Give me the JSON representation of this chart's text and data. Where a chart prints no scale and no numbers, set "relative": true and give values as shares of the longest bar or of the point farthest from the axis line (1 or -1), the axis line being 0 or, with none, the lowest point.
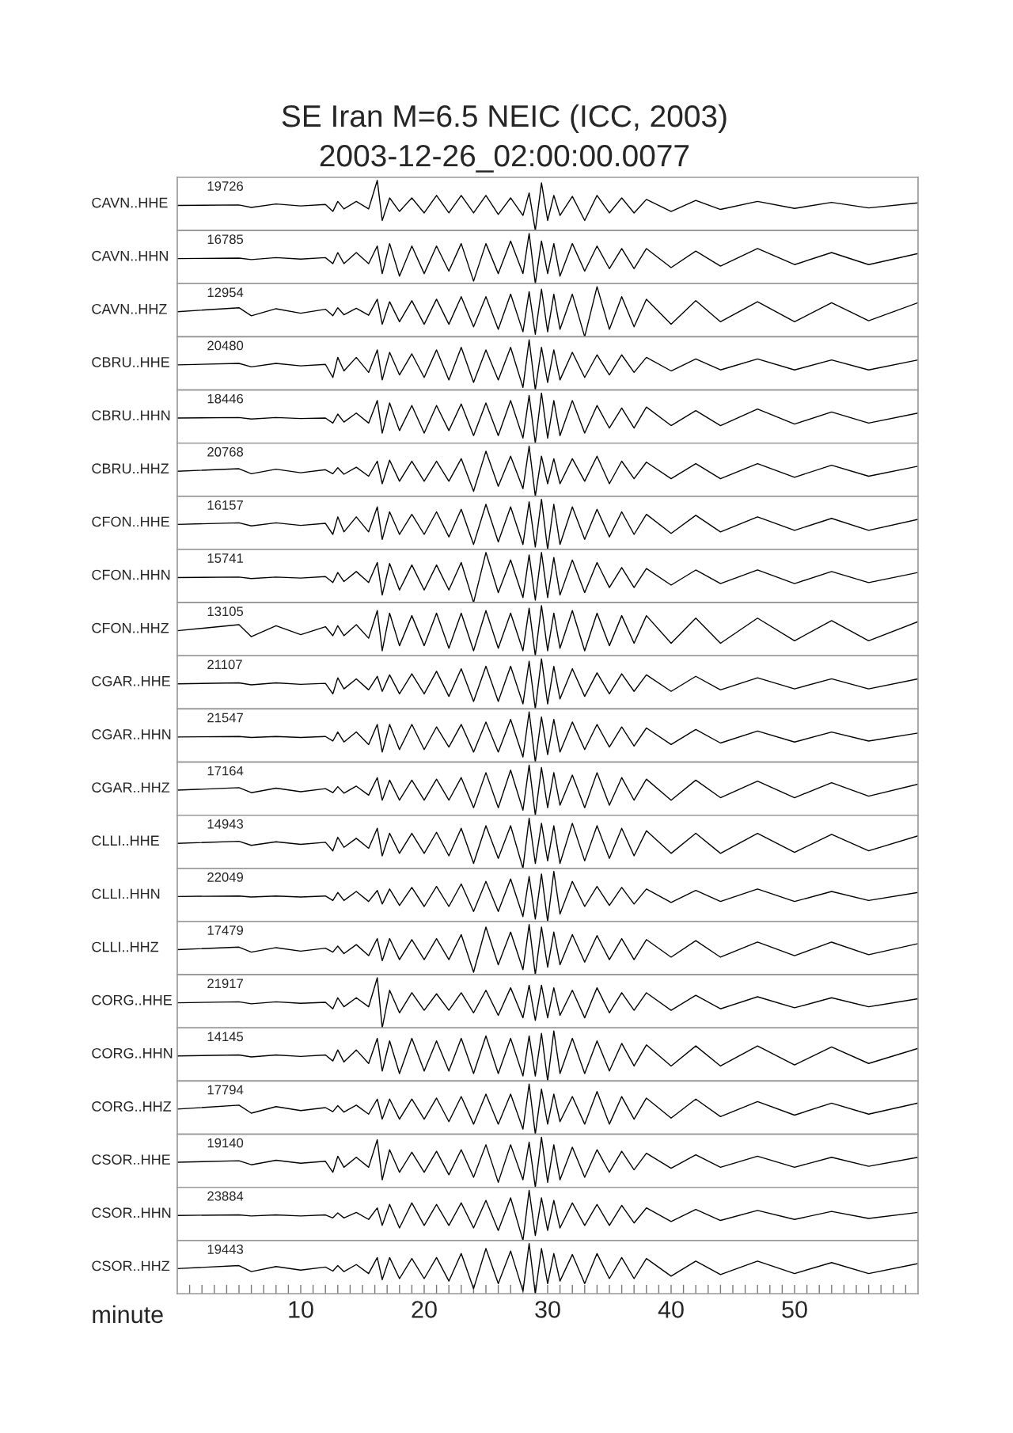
{
  "chart_data": [
    {
      "type": "line",
      "title": "SE Iran M=6.5 NEIC (ICC, 2003)",
      "subtitle": "2003-12-26_02:00:00.0077",
      "relative": true,
      "ylabel": "CAVN..HHE",
      "annotations": [
        "19726"
      ],
      "color": "#000000",
      "xlim": [
        0,
        60
      ],
      "tick_labels": false,
      "x": [
        0,
        5,
        6,
        8,
        10,
        12,
        12.6,
        13,
        13.5,
        14.5,
        15.5,
        16.2,
        16.6,
        17.2,
        18,
        19,
        20,
        21,
        22,
        23,
        24,
        25,
        26,
        27,
        28,
        28.5,
        29,
        29.5,
        30,
        30.5,
        31,
        32,
        33,
        34,
        35,
        36,
        37,
        38,
        40,
        42,
        44,
        47,
        50,
        53,
        56,
        60
      ],
      "values": [
        0.5,
        0.51,
        0.46,
        0.53,
        0.49,
        0.52,
        0.38,
        0.58,
        0.43,
        0.58,
        0.43,
        1,
        0.2,
        0.65,
        0.38,
        0.65,
        0.35,
        0.7,
        0.35,
        0.7,
        0.35,
        0.7,
        0.32,
        0.65,
        0.3,
        0.75,
        0,
        0.95,
        0.2,
        0.7,
        0.3,
        0.68,
        0.2,
        0.7,
        0.35,
        0.65,
        0.35,
        0.62,
        0.38,
        0.6,
        0.42,
        0.58,
        0.44,
        0.56,
        0.45,
        0.55
      ]
    },
    {
      "type": "line",
      "relative": true,
      "ylabel": "CAVN..HHN",
      "annotations": [
        "16785"
      ],
      "color": "#000000",
      "xlim": [
        0,
        60
      ],
      "tick_labels": false,
      "x": [
        0,
        5,
        6,
        8,
        10,
        12,
        12.6,
        13,
        13.5,
        14.5,
        15.5,
        16.2,
        16.6,
        17.2,
        18,
        19,
        20,
        21,
        22,
        23,
        24,
        25,
        26,
        27,
        28,
        28.5,
        29,
        29.5,
        30,
        30.5,
        31,
        32,
        33,
        34,
        35,
        36,
        37,
        38,
        40,
        42,
        44,
        47,
        50,
        53,
        56,
        60
      ],
      "values": [
        0.5,
        0.51,
        0.48,
        0.52,
        0.49,
        0.52,
        0.4,
        0.62,
        0.4,
        0.62,
        0.4,
        0.75,
        0.2,
        0.8,
        0.15,
        0.75,
        0.2,
        0.75,
        0.25,
        0.8,
        0.05,
        0.8,
        0.2,
        0.85,
        0.2,
        1,
        0,
        0.85,
        0.2,
        0.8,
        0.15,
        0.8,
        0.25,
        0.75,
        0.3,
        0.7,
        0.3,
        0.7,
        0.32,
        0.65,
        0.35,
        0.7,
        0.38,
        0.62,
        0.38,
        0.6
      ]
    },
    {
      "type": "line",
      "relative": true,
      "ylabel": "CAVN..HHZ",
      "annotations": [
        "12954"
      ],
      "color": "#000000",
      "xlim": [
        0,
        60
      ],
      "tick_labels": false,
      "x": [
        0,
        5,
        6,
        8,
        10,
        12,
        12.6,
        13,
        13.5,
        14.5,
        15.5,
        16.2,
        16.6,
        17.2,
        18,
        19,
        20,
        21,
        22,
        23,
        24,
        25,
        26,
        27,
        28,
        28.5,
        29,
        29.5,
        30,
        30.5,
        31,
        32,
        33,
        34,
        35,
        36,
        37,
        38,
        40,
        42,
        44,
        47,
        50,
        53,
        56,
        60
      ],
      "values": [
        0.5,
        0.58,
        0.42,
        0.56,
        0.47,
        0.55,
        0.42,
        0.58,
        0.44,
        0.57,
        0.43,
        0.75,
        0.25,
        0.7,
        0.3,
        0.72,
        0.25,
        0.75,
        0.25,
        0.8,
        0.2,
        0.8,
        0.15,
        0.85,
        0.1,
        0.9,
        0.05,
        0.95,
        0.1,
        0.85,
        0.15,
        0.85,
        0,
        1,
        0.15,
        0.8,
        0.2,
        0.75,
        0.25,
        0.72,
        0.3,
        0.7,
        0.3,
        0.68,
        0.32,
        0.68
      ]
    },
    {
      "type": "line",
      "relative": true,
      "ylabel": "CBRU..HHE",
      "annotations": [
        "20480"
      ],
      "color": "#000000",
      "xlim": [
        0,
        60
      ],
      "tick_labels": false,
      "x": [
        0,
        5,
        6,
        8,
        10,
        12,
        12.6,
        13,
        13.5,
        14.5,
        15.5,
        16.2,
        16.6,
        17.2,
        18,
        19,
        20,
        21,
        22,
        23,
        24,
        25,
        26,
        27,
        28,
        28.5,
        29,
        29.5,
        30,
        30.5,
        31,
        32,
        33,
        34,
        35,
        36,
        37,
        38,
        40,
        42,
        44,
        47,
        50,
        53,
        56,
        60
      ],
      "values": [
        0.5,
        0.53,
        0.46,
        0.53,
        0.48,
        0.51,
        0.25,
        0.65,
        0.38,
        0.65,
        0.35,
        0.8,
        0.2,
        0.75,
        0.3,
        0.72,
        0.25,
        0.8,
        0.2,
        0.85,
        0.15,
        0.8,
        0.2,
        0.85,
        0.05,
        1,
        0,
        0.85,
        0.15,
        0.8,
        0.2,
        0.75,
        0.25,
        0.7,
        0.3,
        0.7,
        0.35,
        0.65,
        0.38,
        0.62,
        0.4,
        0.62,
        0.4,
        0.6,
        0.4,
        0.6
      ]
    },
    {
      "type": "line",
      "relative": true,
      "ylabel": "CBRU..HHN",
      "annotations": [
        "18446"
      ],
      "color": "#000000",
      "xlim": [
        0,
        60
      ],
      "tick_labels": false,
      "x": [
        0,
        5,
        6,
        8,
        10,
        12,
        12.6,
        13,
        13.5,
        14.5,
        15.5,
        16.2,
        16.6,
        17.2,
        18,
        19,
        20,
        21,
        22,
        23,
        24,
        25,
        26,
        27,
        28,
        28.5,
        29,
        29.5,
        30,
        30.5,
        31,
        32,
        33,
        34,
        35,
        36,
        37,
        38,
        40,
        42,
        44,
        47,
        50,
        53,
        56,
        60
      ],
      "values": [
        0.5,
        0.51,
        0.48,
        0.51,
        0.49,
        0.5,
        0.4,
        0.58,
        0.42,
        0.6,
        0.4,
        0.85,
        0.2,
        0.8,
        0.25,
        0.75,
        0.2,
        0.75,
        0.25,
        0.78,
        0.15,
        0.8,
        0.15,
        0.85,
        0.1,
        0.95,
        0,
        1,
        0.1,
        0.85,
        0.15,
        0.85,
        0.2,
        0.75,
        0.3,
        0.7,
        0.3,
        0.72,
        0.35,
        0.65,
        0.35,
        0.68,
        0.38,
        0.62,
        0.4,
        0.6
      ]
    },
    {
      "type": "line",
      "relative": true,
      "ylabel": "CBRU..HHZ",
      "annotations": [
        "20768"
      ],
      "color": "#000000",
      "xlim": [
        0,
        60
      ],
      "tick_labels": false,
      "x": [
        0,
        5,
        6,
        8,
        10,
        12,
        12.6,
        13,
        13.5,
        14.5,
        15.5,
        16.2,
        16.6,
        17.2,
        18,
        19,
        20,
        21,
        22,
        23,
        24,
        25,
        26,
        27,
        28,
        28.5,
        29,
        29.5,
        30,
        30.5,
        31,
        32,
        33,
        34,
        35,
        36,
        37,
        38,
        40,
        42,
        44,
        47,
        50,
        53,
        56,
        60
      ],
      "values": [
        0.5,
        0.55,
        0.45,
        0.54,
        0.47,
        0.53,
        0.45,
        0.57,
        0.44,
        0.58,
        0.4,
        0.7,
        0.25,
        0.72,
        0.3,
        0.7,
        0.3,
        0.7,
        0.3,
        0.75,
        0.1,
        0.9,
        0.2,
        0.8,
        0.15,
        1,
        0,
        0.8,
        0.25,
        0.75,
        0.25,
        0.75,
        0.3,
        0.8,
        0.25,
        0.7,
        0.35,
        0.68,
        0.35,
        0.65,
        0.35,
        0.65,
        0.38,
        0.62,
        0.4,
        0.6
      ]
    },
    {
      "type": "line",
      "relative": true,
      "ylabel": "CFON..HHE",
      "annotations": [
        "16157"
      ],
      "color": "#000000",
      "xlim": [
        0,
        60
      ],
      "tick_labels": false,
      "x": [
        0,
        5,
        6,
        8,
        10,
        12,
        12.6,
        13,
        13.5,
        14.5,
        15.5,
        16.2,
        16.6,
        17.2,
        18,
        19,
        20,
        21,
        22,
        23,
        24,
        25,
        26,
        27,
        28,
        28.5,
        29,
        29.5,
        30,
        30.5,
        31,
        32,
        33,
        34,
        35,
        36,
        37,
        38,
        40,
        42,
        44,
        47,
        50,
        53,
        56,
        60
      ],
      "values": [
        0.5,
        0.53,
        0.47,
        0.53,
        0.48,
        0.52,
        0.3,
        0.65,
        0.35,
        0.65,
        0.35,
        0.85,
        0.2,
        0.75,
        0.3,
        0.7,
        0.3,
        0.75,
        0.25,
        0.8,
        0.1,
        0.9,
        0.15,
        0.85,
        0.1,
        0.95,
        0.05,
        1,
        0,
        0.9,
        0.1,
        0.85,
        0.2,
        0.8,
        0.25,
        0.75,
        0.3,
        0.7,
        0.32,
        0.68,
        0.35,
        0.65,
        0.38,
        0.62,
        0.38,
        0.6
      ]
    },
    {
      "type": "line",
      "relative": true,
      "ylabel": "CFON..HHN",
      "annotations": [
        "15741"
      ],
      "color": "#000000",
      "xlim": [
        0,
        60
      ],
      "tick_labels": false,
      "x": [
        0,
        5,
        6,
        8,
        10,
        12,
        12.6,
        13,
        13.5,
        14.5,
        15.5,
        16.2,
        16.6,
        17.2,
        18,
        19,
        20,
        21,
        22,
        23,
        24,
        25,
        26,
        27,
        28,
        28.5,
        29,
        29.5,
        30,
        30.5,
        31,
        32,
        33,
        34,
        35,
        36,
        37,
        38,
        40,
        42,
        44,
        47,
        50,
        53,
        56,
        60
      ],
      "values": [
        0.5,
        0.51,
        0.48,
        0.51,
        0.49,
        0.52,
        0.4,
        0.6,
        0.42,
        0.62,
        0.4,
        0.8,
        0.15,
        0.78,
        0.25,
        0.75,
        0.25,
        0.75,
        0.25,
        0.8,
        0,
        1,
        0.2,
        0.85,
        0.1,
        0.95,
        0.05,
        1,
        0.1,
        0.9,
        0.15,
        0.85,
        0.2,
        0.8,
        0.3,
        0.7,
        0.3,
        0.68,
        0.35,
        0.65,
        0.38,
        0.65,
        0.38,
        0.62,
        0.4,
        0.6
      ]
    },
    {
      "type": "line",
      "relative": true,
      "ylabel": "CFON..HHZ",
      "annotations": [
        "13105"
      ],
      "color": "#000000",
      "xlim": [
        0,
        60
      ],
      "tick_labels": false,
      "x": [
        0,
        5,
        6,
        8,
        10,
        12,
        12.6,
        13,
        13.5,
        14.5,
        15.5,
        16.2,
        16.6,
        17.2,
        18,
        19,
        20,
        21,
        22,
        23,
        24,
        25,
        26,
        27,
        28,
        28.5,
        29,
        29.5,
        30,
        30.5,
        31,
        32,
        33,
        34,
        35,
        36,
        37,
        38,
        40,
        42,
        44,
        47,
        50,
        53,
        56,
        60
      ],
      "values": [
        0.5,
        0.62,
        0.38,
        0.6,
        0.42,
        0.58,
        0.4,
        0.6,
        0.4,
        0.62,
        0.35,
        0.9,
        0.1,
        0.85,
        0.2,
        0.8,
        0.2,
        0.85,
        0.15,
        0.85,
        0.1,
        0.9,
        0.15,
        0.85,
        0.1,
        0.95,
        0,
        1,
        0.1,
        0.85,
        0.15,
        0.9,
        0.1,
        0.85,
        0.2,
        0.8,
        0.25,
        0.8,
        0.25,
        0.75,
        0.25,
        0.75,
        0.3,
        0.7,
        0.3,
        0.68
      ]
    },
    {
      "type": "line",
      "relative": true,
      "ylabel": "CGAR..HHE",
      "annotations": [
        "21107"
      ],
      "color": "#000000",
      "xlim": [
        0,
        60
      ],
      "tick_labels": false,
      "x": [
        0,
        5,
        6,
        8,
        10,
        12,
        12.6,
        13,
        13.5,
        14.5,
        15.5,
        16.2,
        16.6,
        17.2,
        18,
        19,
        20,
        21,
        22,
        23,
        24,
        25,
        26,
        27,
        28,
        28.5,
        29,
        29.5,
        30,
        30.5,
        31,
        32,
        33,
        34,
        35,
        36,
        37,
        38,
        40,
        42,
        44,
        47,
        50,
        53,
        56,
        60
      ],
      "values": [
        0.5,
        0.52,
        0.48,
        0.52,
        0.49,
        0.51,
        0.3,
        0.62,
        0.4,
        0.6,
        0.38,
        0.65,
        0.35,
        0.68,
        0.3,
        0.7,
        0.3,
        0.75,
        0.25,
        0.8,
        0.15,
        0.85,
        0.15,
        0.85,
        0.1,
        0.95,
        0,
        1,
        0.1,
        0.85,
        0.2,
        0.8,
        0.25,
        0.72,
        0.3,
        0.7,
        0.35,
        0.68,
        0.35,
        0.65,
        0.38,
        0.62,
        0.4,
        0.6,
        0.4,
        0.6
      ]
    },
    {
      "type": "line",
      "relative": true,
      "ylabel": "CGAR..HHN",
      "annotations": [
        "21547"
      ],
      "color": "#000000",
      "xlim": [
        0,
        60
      ],
      "tick_labels": false,
      "x": [
        0,
        5,
        6,
        8,
        10,
        12,
        12.6,
        13,
        13.5,
        14.5,
        15.5,
        16.2,
        16.6,
        17.2,
        18,
        19,
        20,
        21,
        22,
        23,
        24,
        25,
        26,
        27,
        28,
        28.5,
        29,
        29.5,
        30,
        30.5,
        31,
        32,
        33,
        34,
        35,
        36,
        37,
        38,
        40,
        42,
        44,
        47,
        50,
        53,
        56,
        60
      ],
      "values": [
        0.5,
        0.51,
        0.49,
        0.51,
        0.49,
        0.51,
        0.42,
        0.6,
        0.4,
        0.6,
        0.35,
        0.75,
        0.2,
        0.75,
        0.25,
        0.75,
        0.25,
        0.7,
        0.3,
        0.75,
        0.2,
        0.8,
        0.2,
        0.85,
        0.1,
        1,
        0,
        0.9,
        0.15,
        0.85,
        0.2,
        0.8,
        0.25,
        0.75,
        0.3,
        0.7,
        0.32,
        0.68,
        0.35,
        0.65,
        0.38,
        0.62,
        0.4,
        0.6,
        0.42,
        0.58
      ]
    },
    {
      "type": "line",
      "relative": true,
      "ylabel": "CGAR..HHZ",
      "annotations": [
        "17164"
      ],
      "color": "#000000",
      "xlim": [
        0,
        60
      ],
      "tick_labels": false,
      "x": [
        0,
        5,
        6,
        8,
        10,
        12,
        12.6,
        13,
        13.5,
        14.5,
        15.5,
        16.2,
        16.6,
        17.2,
        18,
        19,
        20,
        21,
        22,
        23,
        24,
        25,
        26,
        27,
        28,
        28.5,
        29,
        29.5,
        30,
        30.5,
        31,
        32,
        33,
        34,
        35,
        36,
        37,
        38,
        40,
        42,
        44,
        47,
        50,
        53,
        56,
        60
      ],
      "values": [
        0.5,
        0.55,
        0.45,
        0.54,
        0.47,
        0.53,
        0.45,
        0.57,
        0.44,
        0.58,
        0.4,
        0.75,
        0.3,
        0.7,
        0.3,
        0.7,
        0.3,
        0.72,
        0.3,
        0.75,
        0.15,
        0.85,
        0.15,
        0.9,
        0.1,
        1,
        0,
        0.95,
        0.15,
        0.85,
        0.2,
        0.8,
        0.15,
        0.85,
        0.2,
        0.75,
        0.3,
        0.72,
        0.3,
        0.7,
        0.35,
        0.68,
        0.35,
        0.65,
        0.38,
        0.62
      ]
    },
    {
      "type": "line",
      "relative": true,
      "ylabel": "CLLI..HHE",
      "annotations": [
        "14943"
      ],
      "color": "#000000",
      "xlim": [
        0,
        60
      ],
      "tick_labels": false,
      "x": [
        0,
        5,
        6,
        8,
        10,
        12,
        12.6,
        13,
        13.5,
        14.5,
        15.5,
        16.2,
        16.6,
        17.2,
        18,
        19,
        20,
        21,
        22,
        23,
        24,
        25,
        26,
        27,
        28,
        28.5,
        29,
        29.5,
        30,
        30.5,
        31,
        32,
        33,
        34,
        35,
        36,
        37,
        38,
        40,
        42,
        44,
        47,
        50,
        53,
        56,
        60
      ],
      "values": [
        0.5,
        0.54,
        0.46,
        0.53,
        0.48,
        0.52,
        0.35,
        0.62,
        0.42,
        0.6,
        0.4,
        0.8,
        0.25,
        0.7,
        0.3,
        0.7,
        0.3,
        0.72,
        0.25,
        0.8,
        0.1,
        0.85,
        0.2,
        0.85,
        0,
        1,
        0.1,
        0.9,
        0.15,
        0.85,
        0.1,
        0.9,
        0.15,
        0.85,
        0.2,
        0.8,
        0.25,
        0.75,
        0.3,
        0.7,
        0.3,
        0.7,
        0.32,
        0.68,
        0.35,
        0.65
      ]
    },
    {
      "type": "line",
      "relative": true,
      "ylabel": "CLLI..HHN",
      "annotations": [
        "22049"
      ],
      "color": "#000000",
      "xlim": [
        0,
        60
      ],
      "tick_labels": false,
      "x": [
        0,
        5,
        6,
        8,
        10,
        12,
        12.6,
        13,
        13.5,
        14.5,
        15.5,
        16.2,
        16.6,
        17.2,
        18,
        19,
        20,
        21,
        22,
        23,
        24,
        25,
        26,
        27,
        28,
        28.5,
        29,
        29.5,
        30,
        30.5,
        31,
        32,
        33,
        34,
        35,
        36,
        37,
        38,
        40,
        42,
        44,
        47,
        50,
        53,
        56,
        60
      ],
      "values": [
        0.5,
        0.51,
        0.49,
        0.51,
        0.49,
        0.51,
        0.42,
        0.58,
        0.42,
        0.6,
        0.4,
        0.62,
        0.35,
        0.65,
        0.32,
        0.68,
        0.3,
        0.7,
        0.3,
        0.75,
        0.2,
        0.8,
        0.2,
        0.85,
        0.1,
        0.9,
        0.05,
        0.95,
        0,
        1,
        0.15,
        0.8,
        0.3,
        0.7,
        0.32,
        0.68,
        0.35,
        0.65,
        0.38,
        0.62,
        0.4,
        0.65,
        0.4,
        0.6,
        0.42,
        0.58
      ]
    },
    {
      "type": "line",
      "relative": true,
      "ylabel": "CLLI..HHZ",
      "annotations": [
        "17479"
      ],
      "color": "#000000",
      "xlim": [
        0,
        60
      ],
      "tick_labels": false,
      "x": [
        0,
        5,
        6,
        8,
        10,
        12,
        12.6,
        13,
        13.5,
        14.5,
        15.5,
        16.2,
        16.6,
        17.2,
        18,
        19,
        20,
        21,
        22,
        23,
        24,
        25,
        26,
        27,
        28,
        28.5,
        29,
        29.5,
        30,
        30.5,
        31,
        32,
        33,
        34,
        35,
        36,
        37,
        38,
        40,
        42,
        44,
        47,
        50,
        53,
        56,
        60
      ],
      "values": [
        0.5,
        0.55,
        0.45,
        0.54,
        0.47,
        0.53,
        0.45,
        0.57,
        0.42,
        0.6,
        0.38,
        0.72,
        0.28,
        0.72,
        0.3,
        0.7,
        0.3,
        0.72,
        0.3,
        0.8,
        0.05,
        0.95,
        0.2,
        0.85,
        0.1,
        1,
        0,
        0.95,
        0.15,
        0.85,
        0.2,
        0.8,
        0.25,
        0.78,
        0.3,
        0.72,
        0.3,
        0.7,
        0.35,
        0.68,
        0.35,
        0.65,
        0.38,
        0.65,
        0.4,
        0.62
      ]
    },
    {
      "type": "line",
      "relative": true,
      "ylabel": "CORG..HHE",
      "annotations": [
        "21917"
      ],
      "color": "#000000",
      "xlim": [
        0,
        60
      ],
      "tick_labels": false,
      "x": [
        0,
        5,
        6,
        8,
        10,
        12,
        12.6,
        13,
        13.5,
        14.5,
        15.5,
        16.2,
        16.6,
        17.2,
        18,
        19,
        20,
        21,
        22,
        23,
        24,
        25,
        26,
        27,
        28,
        28.5,
        29,
        29.5,
        30,
        30.5,
        31,
        32,
        33,
        34,
        35,
        36,
        37,
        38,
        40,
        42,
        44,
        47,
        50,
        53,
        56,
        60
      ],
      "values": [
        0.5,
        0.52,
        0.48,
        0.52,
        0.49,
        0.51,
        0.38,
        0.6,
        0.42,
        0.6,
        0.42,
        1,
        0,
        0.75,
        0.3,
        0.7,
        0.35,
        0.68,
        0.35,
        0.7,
        0.3,
        0.75,
        0.25,
        0.8,
        0.2,
        0.85,
        0.15,
        0.85,
        0.2,
        0.8,
        0.25,
        0.75,
        0.2,
        0.8,
        0.3,
        0.7,
        0.35,
        0.7,
        0.35,
        0.65,
        0.38,
        0.62,
        0.4,
        0.6,
        0.42,
        0.58
      ]
    },
    {
      "type": "line",
      "relative": true,
      "ylabel": "CORG..HHN",
      "annotations": [
        "14145"
      ],
      "color": "#000000",
      "xlim": [
        0,
        60
      ],
      "tick_labels": false,
      "x": [
        0,
        5,
        6,
        8,
        10,
        12,
        12.6,
        13,
        13.5,
        14.5,
        15.5,
        16.2,
        16.6,
        17.2,
        18,
        19,
        20,
        21,
        22,
        23,
        24,
        25,
        26,
        27,
        28,
        28.5,
        29,
        29.5,
        30,
        30.5,
        31,
        32,
        33,
        34,
        35,
        36,
        37,
        38,
        40,
        42,
        44,
        47,
        50,
        53,
        56,
        60
      ],
      "values": [
        0.5,
        0.52,
        0.48,
        0.52,
        0.49,
        0.52,
        0.4,
        0.62,
        0.38,
        0.62,
        0.35,
        0.85,
        0.2,
        0.8,
        0.15,
        0.85,
        0.2,
        0.8,
        0.2,
        0.85,
        0.15,
        0.9,
        0.15,
        0.85,
        0.1,
        0.9,
        0.1,
        0.95,
        0,
        1,
        0.15,
        0.85,
        0.15,
        0.8,
        0.2,
        0.75,
        0.3,
        0.72,
        0.3,
        0.7,
        0.3,
        0.7,
        0.32,
        0.68,
        0.35,
        0.65
      ]
    },
    {
      "type": "line",
      "relative": true,
      "ylabel": "CORG..HHZ",
      "annotations": [
        "17794"
      ],
      "color": "#000000",
      "xlim": [
        0,
        60
      ],
      "tick_labels": false,
      "x": [
        0,
        5,
        6,
        8,
        10,
        12,
        12.6,
        13,
        13.5,
        14.5,
        15.5,
        16.2,
        16.6,
        17.2,
        18,
        19,
        20,
        21,
        22,
        23,
        24,
        25,
        26,
        27,
        28,
        28.5,
        29,
        29.5,
        30,
        30.5,
        31,
        32,
        33,
        34,
        35,
        36,
        37,
        38,
        40,
        42,
        44,
        47,
        50,
        53,
        56,
        60
      ],
      "values": [
        0.5,
        0.58,
        0.42,
        0.55,
        0.47,
        0.53,
        0.45,
        0.57,
        0.44,
        0.58,
        0.4,
        0.7,
        0.3,
        0.7,
        0.3,
        0.7,
        0.3,
        0.72,
        0.25,
        0.75,
        0.2,
        0.8,
        0.2,
        0.8,
        0.1,
        1,
        0,
        0.9,
        0.2,
        0.8,
        0.25,
        0.75,
        0.2,
        0.85,
        0.2,
        0.75,
        0.3,
        0.72,
        0.32,
        0.7,
        0.35,
        0.65,
        0.38,
        0.62,
        0.4,
        0.62
      ]
    },
    {
      "type": "line",
      "relative": true,
      "ylabel": "CSOR..HHE",
      "annotations": [
        "19140"
      ],
      "color": "#000000",
      "xlim": [
        0,
        60
      ],
      "tick_labels": false,
      "x": [
        0,
        5,
        6,
        8,
        10,
        12,
        12.6,
        13,
        13.5,
        14.5,
        15.5,
        16.2,
        16.6,
        17.2,
        18,
        19,
        20,
        21,
        22,
        23,
        24,
        25,
        26,
        27,
        28,
        28.5,
        29,
        29.5,
        30,
        30.5,
        31,
        32,
        33,
        34,
        35,
        36,
        37,
        38,
        40,
        42,
        44,
        47,
        50,
        53,
        56,
        60
      ],
      "values": [
        0.5,
        0.53,
        0.45,
        0.54,
        0.48,
        0.52,
        0.3,
        0.62,
        0.4,
        0.6,
        0.4,
        0.95,
        0.15,
        0.75,
        0.3,
        0.7,
        0.3,
        0.72,
        0.25,
        0.75,
        0.2,
        0.85,
        0.1,
        0.85,
        0.15,
        0.9,
        0,
        1,
        0.1,
        0.85,
        0.15,
        0.8,
        0.2,
        0.75,
        0.3,
        0.72,
        0.35,
        0.68,
        0.38,
        0.65,
        0.4,
        0.62,
        0.4,
        0.6,
        0.42,
        0.6
      ]
    },
    {
      "type": "line",
      "relative": true,
      "ylabel": "CSOR..HHN",
      "annotations": [
        "23884"
      ],
      "color": "#000000",
      "xlim": [
        0,
        60
      ],
      "tick_labels": false,
      "x": [
        0,
        5,
        6,
        8,
        10,
        12,
        12.6,
        13,
        13.5,
        14.5,
        15.5,
        16.2,
        16.6,
        17.2,
        18,
        19,
        20,
        21,
        22,
        23,
        24,
        25,
        26,
        27,
        28,
        28.5,
        29,
        29.5,
        30,
        30.5,
        31,
        32,
        33,
        34,
        35,
        36,
        37,
        38,
        40,
        42,
        44,
        47,
        50,
        53,
        56,
        60
      ],
      "values": [
        0.5,
        0.51,
        0.49,
        0.51,
        0.49,
        0.51,
        0.45,
        0.55,
        0.45,
        0.56,
        0.42,
        0.65,
        0.3,
        0.72,
        0.25,
        0.75,
        0.3,
        0.72,
        0.3,
        0.75,
        0.25,
        0.8,
        0.2,
        0.85,
        0,
        1,
        0.1,
        0.85,
        0.2,
        0.8,
        0.25,
        0.75,
        0.3,
        0.72,
        0.3,
        0.7,
        0.35,
        0.65,
        0.38,
        0.62,
        0.4,
        0.6,
        0.42,
        0.58,
        0.44,
        0.56
      ]
    },
    {
      "type": "line",
      "relative": true,
      "ylabel": "CSOR..HHZ",
      "annotations": [
        "19443"
      ],
      "color": "#000000",
      "xlim": [
        0,
        60
      ],
      "tick_labels": "x",
      "xlabel": "minute",
      "xticks": [
        {
          "value": 1,
          "label": null
        },
        {
          "value": 2,
          "label": null
        },
        {
          "value": 3,
          "label": null
        },
        {
          "value": 4,
          "label": null
        },
        {
          "value": 5,
          "label": null
        },
        {
          "value": 6,
          "label": null
        },
        {
          "value": 7,
          "label": null
        },
        {
          "value": 8,
          "label": null
        },
        {
          "value": 9,
          "label": null
        },
        10,
        {
          "value": 11,
          "label": null
        },
        {
          "value": 12,
          "label": null
        },
        {
          "value": 13,
          "label": null
        },
        {
          "value": 14,
          "label": null
        },
        {
          "value": 15,
          "label": null
        },
        {
          "value": 16,
          "label": null
        },
        {
          "value": 17,
          "label": null
        },
        {
          "value": 18,
          "label": null
        },
        {
          "value": 19,
          "label": null
        },
        20,
        {
          "value": 21,
          "label": null
        },
        {
          "value": 22,
          "label": null
        },
        {
          "value": 23,
          "label": null
        },
        {
          "value": 24,
          "label": null
        },
        {
          "value": 25,
          "label": null
        },
        {
          "value": 26,
          "label": null
        },
        {
          "value": 27,
          "label": null
        },
        {
          "value": 28,
          "label": null
        },
        {
          "value": 29,
          "label": null
        },
        30,
        {
          "value": 31,
          "label": null
        },
        {
          "value": 32,
          "label": null
        },
        {
          "value": 33,
          "label": null
        },
        {
          "value": 34,
          "label": null
        },
        {
          "value": 35,
          "label": null
        },
        {
          "value": 36,
          "label": null
        },
        {
          "value": 37,
          "label": null
        },
        {
          "value": 38,
          "label": null
        },
        {
          "value": 39,
          "label": null
        },
        40,
        {
          "value": 41,
          "label": null
        },
        {
          "value": 42,
          "label": null
        },
        {
          "value": 43,
          "label": null
        },
        {
          "value": 44,
          "label": null
        },
        {
          "value": 45,
          "label": null
        },
        {
          "value": 46,
          "label": null
        },
        {
          "value": 47,
          "label": null
        },
        {
          "value": 48,
          "label": null
        },
        {
          "value": 49,
          "label": null
        },
        50,
        {
          "value": 51,
          "label": null
        },
        {
          "value": 52,
          "label": null
        },
        {
          "value": 53,
          "label": null
        },
        {
          "value": 54,
          "label": null
        },
        {
          "value": 55,
          "label": null
        },
        {
          "value": 56,
          "label": null
        },
        {
          "value": 57,
          "label": null
        },
        {
          "value": 58,
          "label": null
        },
        {
          "value": 59,
          "label": null
        }
      ],
      "x": [
        0,
        5,
        6,
        8,
        10,
        12,
        12.6,
        13,
        13.5,
        14.5,
        15.5,
        16.2,
        16.6,
        17.2,
        18,
        19,
        20,
        21,
        22,
        23,
        24,
        25,
        26,
        27,
        28,
        28.5,
        29,
        29.5,
        30,
        30.5,
        31,
        32,
        33,
        34,
        35,
        36,
        37,
        38,
        40,
        42,
        44,
        47,
        50,
        53,
        56,
        60
      ],
      "values": [
        0.5,
        0.56,
        0.44,
        0.54,
        0.47,
        0.53,
        0.45,
        0.56,
        0.44,
        0.58,
        0.4,
        0.72,
        0.28,
        0.72,
        0.3,
        0.7,
        0.3,
        0.72,
        0.25,
        0.8,
        0.1,
        0.9,
        0.2,
        0.85,
        0.05,
        1,
        0,
        0.9,
        0.2,
        0.8,
        0.25,
        0.78,
        0.2,
        0.8,
        0.3,
        0.72,
        0.3,
        0.7,
        0.35,
        0.65,
        0.38,
        0.65,
        0.4,
        0.62,
        0.4,
        0.6
      ]
    }
  ]
}
